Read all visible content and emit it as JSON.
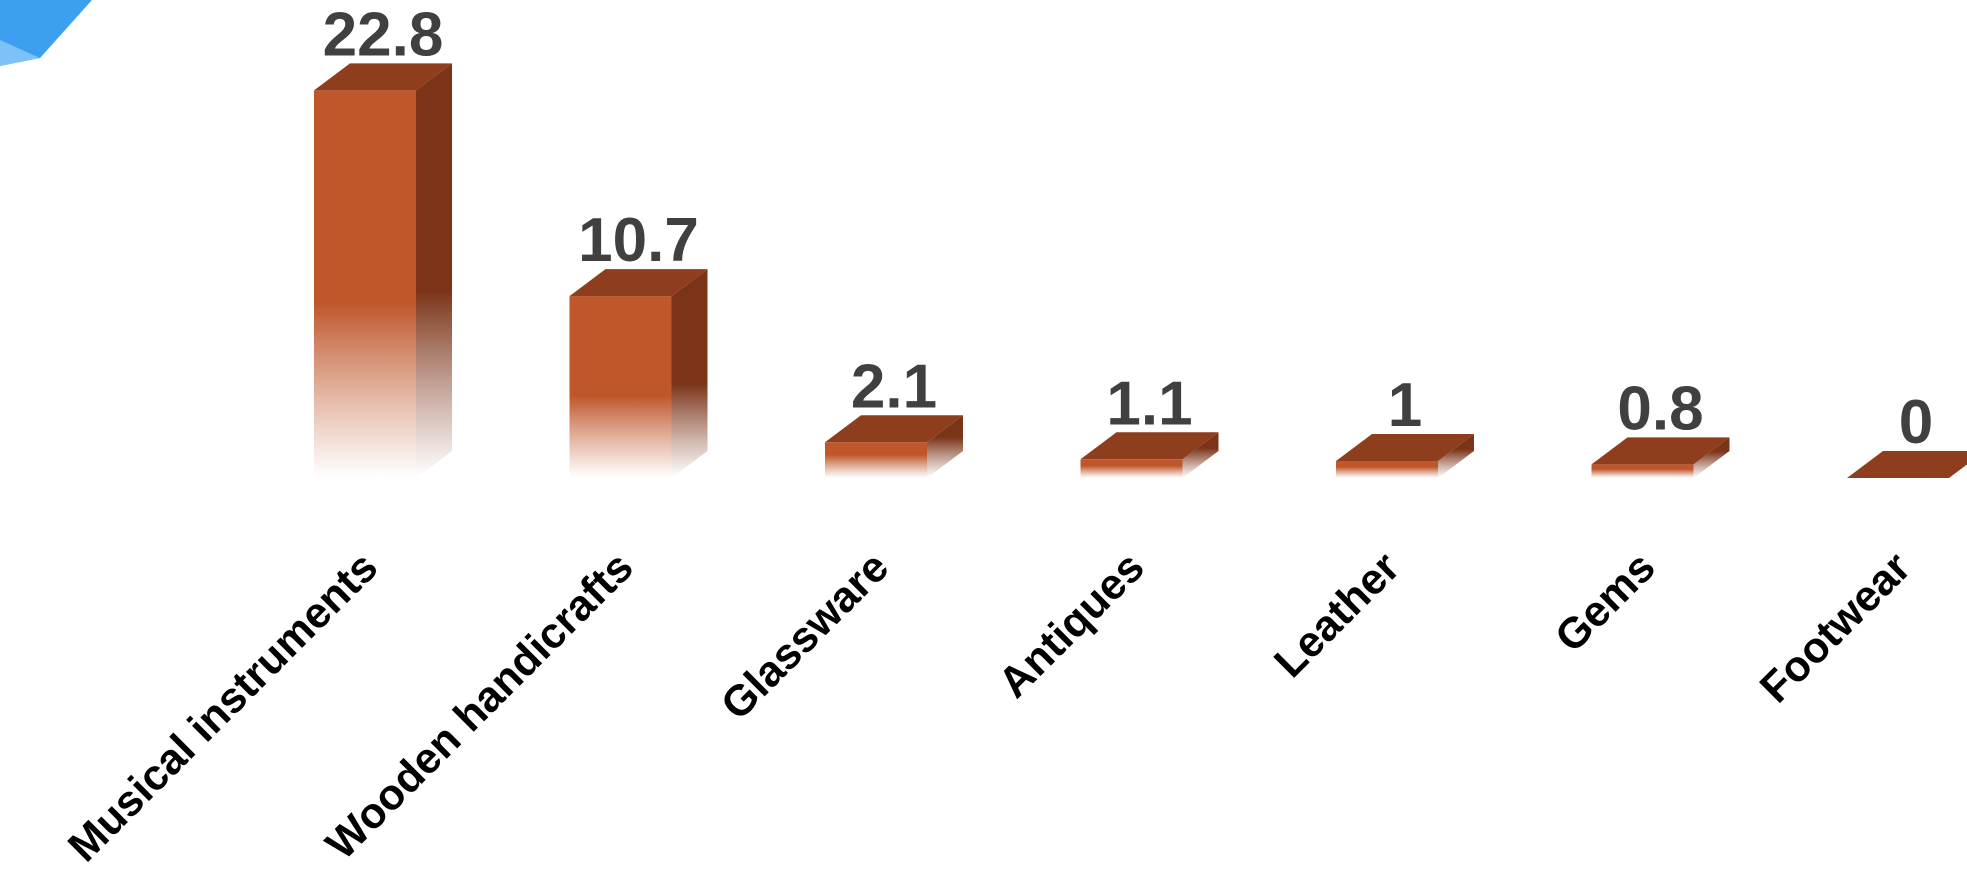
{
  "chart_data": {
    "type": "bar",
    "categories": [
      "Musical instruments",
      "Wooden handicrafts",
      "Glassware",
      "Antiques",
      "Leather",
      "Gems",
      "Footwear"
    ],
    "values": [
      22.8,
      10.7,
      2.1,
      1.1,
      1,
      0.8,
      0
    ],
    "data_labels": [
      "22.8",
      "10.7",
      "2.1",
      "1.1",
      "1",
      "0.8",
      "0"
    ],
    "ylim": [
      0,
      24
    ],
    "grid": false,
    "legend": "none",
    "style": "3d-column-with-fade"
  },
  "colors": {
    "bar_front": "#bf572b",
    "bar_top": "#8f3e1d",
    "bar_side": "#7c3419",
    "value_text": "#404040",
    "category_text": "#000000",
    "corner_accent": "#3d9ff0"
  },
  "icons": {
    "corner": "blue-triangle-corner-decoration"
  }
}
